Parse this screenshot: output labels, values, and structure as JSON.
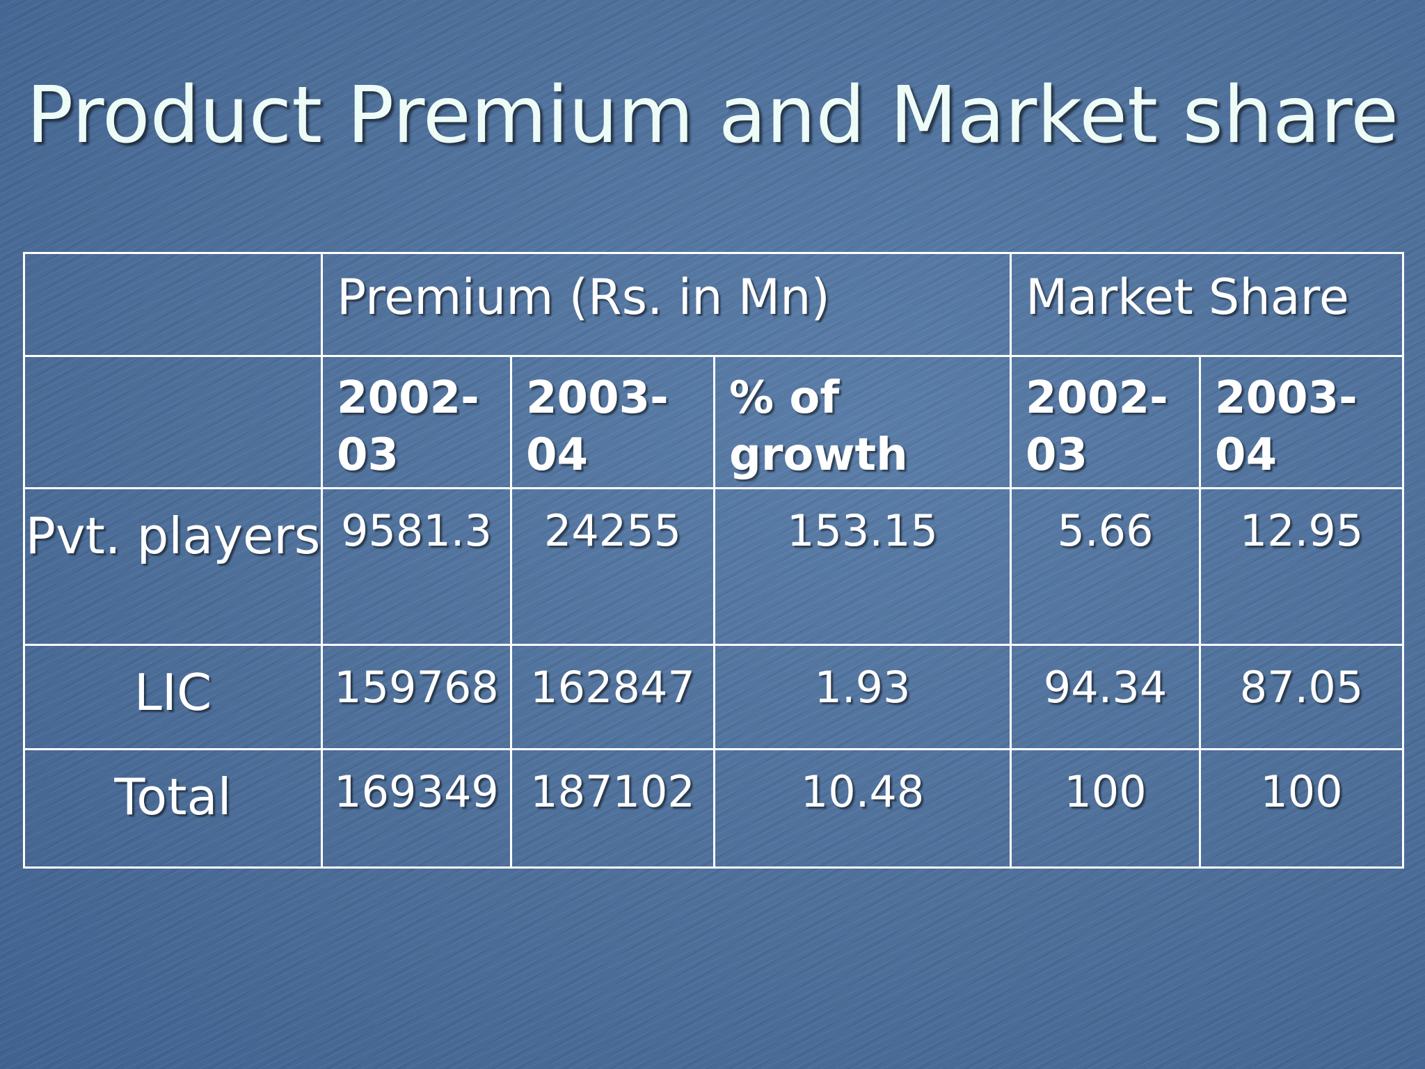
{
  "title": "Product Premium and Market share",
  "table": {
    "group_headers": {
      "premium": "Premium (Rs. in Mn)",
      "market_share": "Market Share"
    },
    "sub_headers": [
      "2002-03",
      "2003-04",
      "% of growth",
      "2002-03",
      "2003-04"
    ],
    "rows": [
      {
        "label": "Pvt. players",
        "premium_2002_03": "9581.3",
        "premium_2003_04": "24255",
        "growth": "153.15",
        "share_2002_03": "5.66",
        "share_2003_04": "12.95"
      },
      {
        "label": "LIC",
        "premium_2002_03": "159768",
        "premium_2003_04": "162847",
        "growth": "1.93",
        "share_2002_03": "94.34",
        "share_2003_04": "87.05"
      },
      {
        "label": "Total",
        "premium_2002_03": "169349",
        "premium_2003_04": "187102",
        "growth": "10.48",
        "share_2002_03": "100",
        "share_2003_04": "100"
      }
    ]
  }
}
